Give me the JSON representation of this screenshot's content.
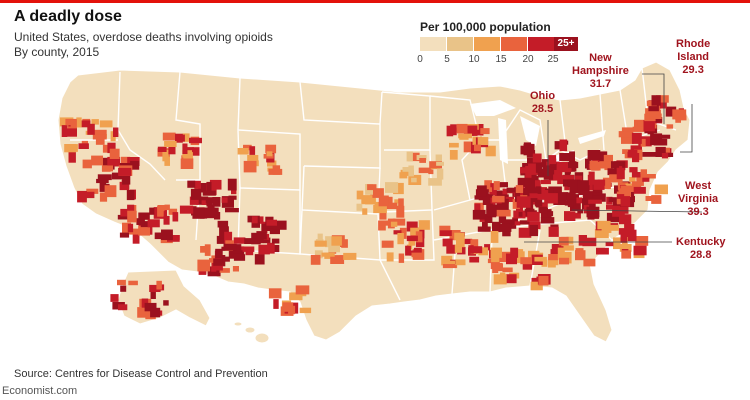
{
  "title": "A deadly dose",
  "subtitle_line1": "United States, overdose deaths involving opioids",
  "subtitle_line2": "By county, 2015",
  "legend": {
    "title": "Per 100,000 population",
    "ticks": [
      "0",
      "5",
      "10",
      "15",
      "20",
      "25"
    ],
    "top_label": "25+",
    "colors": [
      "#f3dfbd",
      "#e9c388",
      "#f0a14f",
      "#e9633d",
      "#c41c28",
      "#9b111e"
    ]
  },
  "annotations": {
    "ohio": {
      "name": "Ohio",
      "value": "28.5"
    },
    "new_hampshire": {
      "name_line1": "New",
      "name_line2": "Hampshire",
      "value": "31.7"
    },
    "rhode_island": {
      "name_line1": "Rhode",
      "name_line2": "Island",
      "value": "29.3"
    },
    "west_virginia": {
      "name_line1": "West",
      "name_line2": "Virginia",
      "value": "39.3"
    },
    "kentucky": {
      "name": "Kentucky",
      "value": "28.8"
    }
  },
  "map": {
    "base_color": "#f3dfbd",
    "border_color": "#ffffff",
    "hotspot_colors": [
      "#e9c388",
      "#f0a14f",
      "#e9633d",
      "#c41c28",
      "#9b111e"
    ]
  },
  "source": "Source: Centres for Disease Control and Prevention",
  "brand": "Economist.com"
}
